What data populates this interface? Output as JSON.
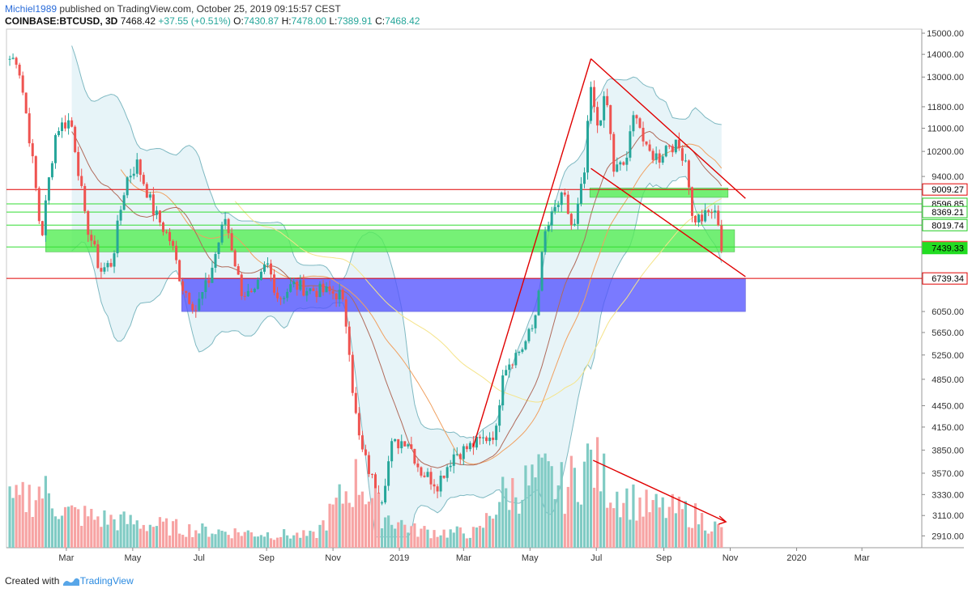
{
  "header": {
    "author": "Michiel1989",
    "published": "published on TradingView.com, October 25, 2019 09:15:57 CEST",
    "symbol": "COINBASE:BTCUSD, 3D",
    "last": "7468.42",
    "change": "+37.55 (+0.51%)",
    "o_label": "O:",
    "o": "7430.87",
    "h_label": "H:",
    "h": "7478.00",
    "l_label": "L:",
    "l": "7389.91",
    "c_label": "C:",
    "c": "7468.42"
  },
  "footer": {
    "created_with": "Created with",
    "brand": "TradingView"
  },
  "colors": {
    "up": "#26a69a",
    "down": "#ef5350",
    "vol_up": "#80cbc4",
    "vol_down": "#f7a3a3",
    "red_line": "#e00000",
    "green_line": "#33dd33",
    "green_zone": "#55ee55",
    "blue_zone": "#5555ff",
    "bb_fill": "#e3f2f7",
    "bb_line": "#7fb9c2",
    "ma_brown": "#b06a5a",
    "ma_orange": "#f0a060",
    "ma_yellow": "#f5e48a"
  },
  "chart_data": {
    "type": "candlestick",
    "title": "COINBASE:BTCUSD, 3D",
    "y_scale": "log",
    "ylim": [
      2800,
      15200
    ],
    "y_ticks": [
      "15000.00",
      "14000.00",
      "13000.00",
      "11800.00",
      "11000.00",
      "10200.00",
      "9400.00",
      "8596.85",
      "8369.21",
      "8019.74",
      "7439.33",
      "6050.00",
      "5650.00",
      "5250.00",
      "4850.00",
      "4450.00",
      "4150.00",
      "3850.00",
      "3570.00",
      "3330.00",
      "3110.00",
      "2910.00"
    ],
    "x_ticks": [
      "Mar",
      "May",
      "Jul",
      "Sep",
      "Nov",
      "2019",
      "Mar",
      "May",
      "Jul",
      "Sep",
      "Nov",
      "2020",
      "Mar"
    ],
    "price_labels": [
      {
        "value": 9009.27,
        "label": "9009.27",
        "style": "red"
      },
      {
        "value": 8596.85,
        "label": "8596.85",
        "style": "green"
      },
      {
        "value": 8369.21,
        "label": "8369.21",
        "style": "green"
      },
      {
        "value": 8019.74,
        "label": "8019.74",
        "style": "green"
      },
      {
        "value": 7468.42,
        "label": "7468.42",
        "style": "red-fill"
      },
      {
        "value": 7439.33,
        "label": "7439.33",
        "style": "green-fill"
      },
      {
        "value": 6739.34,
        "label": "6739.34",
        "style": "red"
      }
    ],
    "horizontal_levels": [
      {
        "value": 9009.27,
        "color": "red"
      },
      {
        "value": 8596.85,
        "color": "green"
      },
      {
        "value": 8369.21,
        "color": "green"
      },
      {
        "value": 8019.74,
        "color": "green"
      },
      {
        "value": 7468.42,
        "color": "green"
      },
      {
        "value": 6739.34,
        "color": "red"
      }
    ],
    "zones": [
      {
        "kind": "green",
        "from_date": "2018-02-10",
        "to_date": "2019-11-05",
        "low": 7350,
        "high": 7900
      },
      {
        "kind": "green",
        "from_date": "2019-06-25",
        "to_date": "2019-10-30",
        "low": 8780,
        "high": 9050
      },
      {
        "kind": "blue",
        "from_date": "2018-06-15",
        "to_date": "2019-11-15",
        "low": 6050,
        "high": 6740
      }
    ],
    "trendlines": [
      {
        "from": [
          "2019-03-10",
          3900
        ],
        "to": [
          "2019-06-26",
          13800
        ],
        "color": "red"
      },
      {
        "from": [
          "2019-06-26",
          13800
        ],
        "to": [
          "2019-11-15",
          8750
        ],
        "color": "red"
      },
      {
        "from": [
          "2019-06-26",
          9650
        ],
        "to": [
          "2019-11-15",
          6780
        ],
        "color": "red"
      },
      {
        "from": [
          "2019-06-28",
          3850
        ],
        "to": [
          "2019-10-28",
          3120
        ],
        "color": "red",
        "pane": "volume",
        "arrow": true
      }
    ],
    "ohlc_anchors": [
      [
        "2018-01-15",
        13800
      ],
      [
        "2018-02-06",
        7600
      ],
      [
        "2018-02-20",
        11000
      ],
      [
        "2018-03-05",
        11300
      ],
      [
        "2018-03-18",
        8200
      ],
      [
        "2018-04-01",
        6900
      ],
      [
        "2018-04-12",
        7100
      ],
      [
        "2018-04-25",
        9300
      ],
      [
        "2018-05-05",
        9800
      ],
      [
        "2018-05-20",
        8400
      ],
      [
        "2018-06-05",
        7600
      ],
      [
        "2018-06-15",
        6600
      ],
      [
        "2018-06-28",
        6100
      ],
      [
        "2018-07-10",
        6700
      ],
      [
        "2018-07-25",
        8200
      ],
      [
        "2018-08-08",
        6500
      ],
      [
        "2018-08-20",
        6300
      ],
      [
        "2018-09-01",
        7100
      ],
      [
        "2018-09-12",
        6300
      ],
      [
        "2018-09-25",
        6600
      ],
      [
        "2018-10-10",
        6500
      ],
      [
        "2018-10-25",
        6450
      ],
      [
        "2018-11-08",
        6400
      ],
      [
        "2018-11-15",
        5600
      ],
      [
        "2018-11-20",
        4500
      ],
      [
        "2018-11-26",
        3900
      ],
      [
        "2018-12-07",
        3500
      ],
      [
        "2018-12-15",
        3250
      ],
      [
        "2018-12-25",
        3900
      ],
      [
        "2019-01-08",
        4000
      ],
      [
        "2019-01-20",
        3600
      ],
      [
        "2019-02-05",
        3450
      ],
      [
        "2019-02-20",
        3800
      ],
      [
        "2019-03-01",
        3850
      ],
      [
        "2019-03-15",
        3950
      ],
      [
        "2019-04-01",
        4100
      ],
      [
        "2019-04-05",
        5000
      ],
      [
        "2019-04-25",
        5400
      ],
      [
        "2019-05-05",
        5800
      ],
      [
        "2019-05-15",
        7800
      ],
      [
        "2019-05-25",
        8500
      ],
      [
        "2019-06-01",
        8800
      ],
      [
        "2019-06-10",
        7800
      ],
      [
        "2019-06-20",
        9500
      ],
      [
        "2019-06-26",
        12500
      ],
      [
        "2019-07-01",
        11000
      ],
      [
        "2019-07-10",
        12200
      ],
      [
        "2019-07-17",
        9600
      ],
      [
        "2019-07-28",
        9800
      ],
      [
        "2019-08-06",
        11800
      ],
      [
        "2019-08-15",
        10200
      ],
      [
        "2019-08-28",
        10000
      ],
      [
        "2019-09-05",
        10500
      ],
      [
        "2019-09-15",
        10300
      ],
      [
        "2019-09-22",
        9900
      ],
      [
        "2019-09-27",
        8200
      ],
      [
        "2019-10-07",
        8200
      ],
      [
        "2019-10-15",
        8400
      ],
      [
        "2019-10-22",
        8100
      ],
      [
        "2019-10-24",
        7430
      ]
    ],
    "volume_anchors": [
      [
        "2018-01-15",
        0.38
      ],
      [
        "2018-02-06",
        0.5
      ],
      [
        "2018-03-01",
        0.3
      ],
      [
        "2018-04-01",
        0.25
      ],
      [
        "2018-05-15",
        0.2
      ],
      [
        "2018-07-01",
        0.15
      ],
      [
        "2018-09-01",
        0.12
      ],
      [
        "2018-10-15",
        0.1
      ],
      [
        "2018-11-15",
        0.5
      ],
      [
        "2018-11-25",
        0.6
      ],
      [
        "2018-12-15",
        0.3
      ],
      [
        "2019-01-15",
        0.15
      ],
      [
        "2019-02-15",
        0.13
      ],
      [
        "2019-03-15",
        0.13
      ],
      [
        "2019-04-05",
        0.45
      ],
      [
        "2019-05-15",
        0.6
      ],
      [
        "2019-06-01",
        0.5
      ],
      [
        "2019-06-26",
        0.75
      ],
      [
        "2019-07-15",
        0.5
      ],
      [
        "2019-08-15",
        0.35
      ],
      [
        "2019-09-25",
        0.3
      ],
      [
        "2019-10-24",
        0.15
      ]
    ]
  }
}
